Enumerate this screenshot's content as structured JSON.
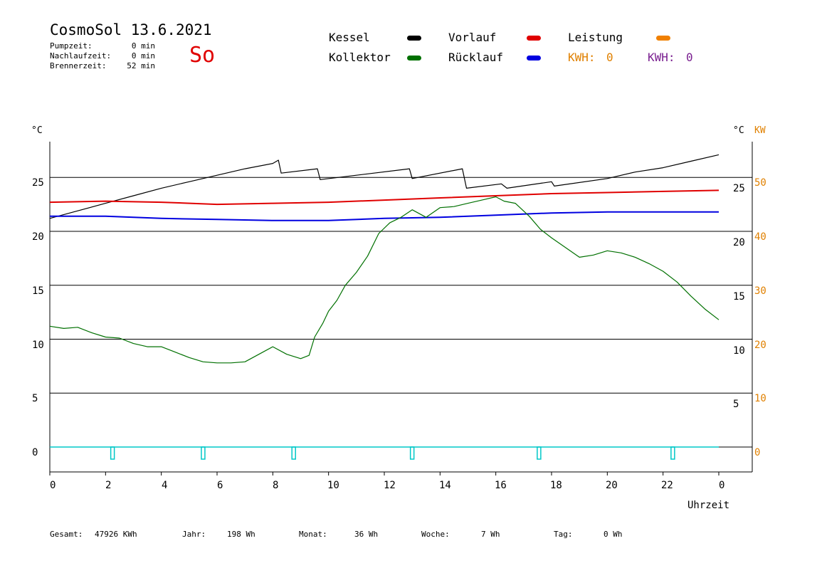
{
  "header": {
    "title": "CosmoSol 13.6.2021",
    "day": "So",
    "stats": [
      {
        "label": "Pumpzeit:",
        "value": "0 min"
      },
      {
        "label": "Nachlaufzeit:",
        "value": "0 min"
      },
      {
        "label": "Brennerzeit:",
        "value": "52 min"
      }
    ]
  },
  "legend": [
    {
      "label": "Kessel",
      "color": "#000000"
    },
    {
      "label": "Vorlauf",
      "color": "#e00000"
    },
    {
      "label": "Leistung",
      "color": "#f08000"
    },
    {
      "label": "Kollektor",
      "color": "#007000"
    },
    {
      "label": "Rücklauf",
      "color": "#0000e0"
    }
  ],
  "kwh": [
    {
      "label": "KWH:",
      "value": "0",
      "color": "#e08000"
    },
    {
      "label": "KWH:",
      "value": "0",
      "color": "#7a2090"
    }
  ],
  "axes": {
    "left_unit": "°C",
    "right_unit": "°C",
    "right2_unit": "KW",
    "left_ticks": [
      "0",
      "5",
      "10",
      "15",
      "20",
      "25"
    ],
    "right_ticks": [
      "5",
      "10",
      "15",
      "20",
      "25"
    ],
    "kw_ticks": [
      "0",
      "10",
      "20",
      "30",
      "40",
      "50"
    ],
    "x_ticks": [
      "0",
      "2",
      "4",
      "6",
      "8",
      "10",
      "12",
      "14",
      "16",
      "18",
      "20",
      "22",
      "0"
    ],
    "xlabel": "Uhrzeit"
  },
  "footer": [
    {
      "label": "Gesamt:",
      "value": "47926 KWh"
    },
    {
      "label": "Jahr:",
      "value": "198 Wh"
    },
    {
      "label": "Monat:",
      "value": "36 Wh"
    },
    {
      "label": "Woche:",
      "value": "7 Wh"
    },
    {
      "label": "Tag:",
      "value": "0 Wh"
    }
  ],
  "chart_data": {
    "type": "line",
    "xlabel": "Uhrzeit",
    "ylabel": "°C",
    "xlim": [
      0,
      24
    ],
    "ylim": [
      0,
      28
    ],
    "grid": "horizontal",
    "pump_markers_h": [
      2.25,
      5.5,
      8.75,
      13.0,
      17.55,
      22.35
    ],
    "series": [
      {
        "name": "Kessel",
        "color": "#000000",
        "points": [
          [
            0,
            21.2
          ],
          [
            1,
            21.9
          ],
          [
            2,
            22.6
          ],
          [
            3,
            23.3
          ],
          [
            4,
            24.0
          ],
          [
            5,
            24.6
          ],
          [
            6,
            25.2
          ],
          [
            7,
            25.8
          ],
          [
            8,
            26.3
          ],
          [
            8.2,
            26.6
          ],
          [
            8.3,
            25.4
          ],
          [
            9.6,
            25.8
          ],
          [
            9.7,
            24.8
          ],
          [
            11,
            25.2
          ],
          [
            12.9,
            25.8
          ],
          [
            13,
            24.9
          ],
          [
            14.8,
            25.8
          ],
          [
            14.95,
            24.0
          ],
          [
            16.2,
            24.4
          ],
          [
            16.4,
            24.0
          ],
          [
            18,
            24.6
          ],
          [
            18.1,
            24.2
          ],
          [
            20,
            24.9
          ],
          [
            21,
            25.5
          ],
          [
            22,
            25.9
          ],
          [
            23,
            26.5
          ],
          [
            24,
            27.1
          ]
        ]
      },
      {
        "name": "Vorlauf",
        "color": "#e00000",
        "points": [
          [
            0,
            22.7
          ],
          [
            2,
            22.8
          ],
          [
            4,
            22.7
          ],
          [
            6,
            22.5
          ],
          [
            8,
            22.6
          ],
          [
            10,
            22.7
          ],
          [
            12,
            22.9
          ],
          [
            14,
            23.1
          ],
          [
            16,
            23.3
          ],
          [
            18,
            23.5
          ],
          [
            20,
            23.6
          ],
          [
            22,
            23.7
          ],
          [
            24,
            23.8
          ]
        ]
      },
      {
        "name": "Rücklauf",
        "color": "#0000e0",
        "points": [
          [
            0,
            21.4
          ],
          [
            2,
            21.4
          ],
          [
            4,
            21.2
          ],
          [
            6,
            21.1
          ],
          [
            8,
            21.0
          ],
          [
            10,
            21.0
          ],
          [
            12,
            21.2
          ],
          [
            14,
            21.3
          ],
          [
            16,
            21.5
          ],
          [
            18,
            21.7
          ],
          [
            20,
            21.8
          ],
          [
            22,
            21.8
          ],
          [
            24,
            21.8
          ]
        ]
      },
      {
        "name": "Kollektor",
        "color": "#007000",
        "points": [
          [
            0,
            11.2
          ],
          [
            0.5,
            11.0
          ],
          [
            1,
            11.1
          ],
          [
            1.5,
            10.6
          ],
          [
            2,
            10.2
          ],
          [
            2.5,
            10.1
          ],
          [
            3,
            9.6
          ],
          [
            3.5,
            9.3
          ],
          [
            4,
            9.3
          ],
          [
            4.5,
            8.8
          ],
          [
            5,
            8.3
          ],
          [
            5.5,
            7.9
          ],
          [
            6,
            7.8
          ],
          [
            6.5,
            7.8
          ],
          [
            7,
            7.9
          ],
          [
            7.5,
            8.6
          ],
          [
            8,
            9.3
          ],
          [
            8.5,
            8.6
          ],
          [
            9,
            8.2
          ],
          [
            9.3,
            8.5
          ],
          [
            9.5,
            10.2
          ],
          [
            9.8,
            11.5
          ],
          [
            10,
            12.6
          ],
          [
            10.3,
            13.6
          ],
          [
            10.6,
            15.0
          ],
          [
            11,
            16.2
          ],
          [
            11.4,
            17.7
          ],
          [
            11.8,
            19.8
          ],
          [
            12.2,
            20.8
          ],
          [
            12.6,
            21.3
          ],
          [
            13,
            22.0
          ],
          [
            13.5,
            21.3
          ],
          [
            14,
            22.2
          ],
          [
            14.5,
            22.3
          ],
          [
            15,
            22.6
          ],
          [
            15.5,
            22.9
          ],
          [
            16,
            23.2
          ],
          [
            16.3,
            22.8
          ],
          [
            16.7,
            22.6
          ],
          [
            17.2,
            21.4
          ],
          [
            17.6,
            20.2
          ],
          [
            18,
            19.4
          ],
          [
            18.5,
            18.5
          ],
          [
            19,
            17.6
          ],
          [
            19.5,
            17.8
          ],
          [
            20,
            18.2
          ],
          [
            20.5,
            18.0
          ],
          [
            21,
            17.6
          ],
          [
            21.5,
            17.0
          ],
          [
            22,
            16.3
          ],
          [
            22.5,
            15.3
          ],
          [
            23,
            14.0
          ],
          [
            23.5,
            12.8
          ],
          [
            24,
            11.8
          ]
        ]
      }
    ],
    "kw_series": {
      "name": "Leistung",
      "values": [
        0
      ]
    }
  }
}
